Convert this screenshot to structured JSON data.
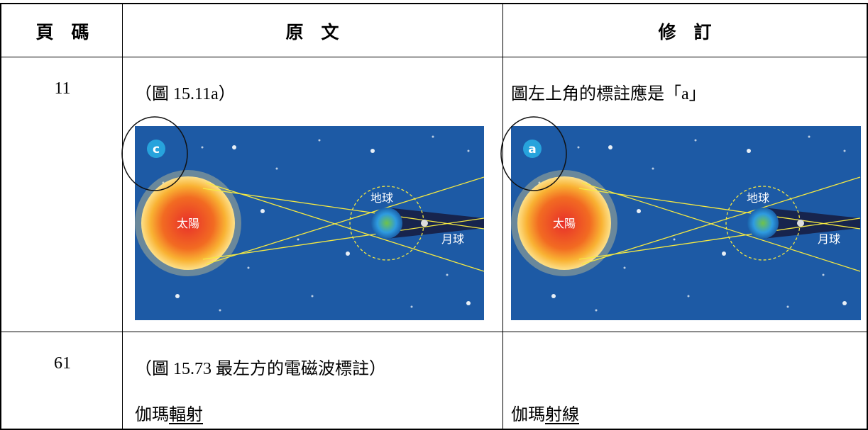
{
  "table": {
    "header": [
      "頁　碼",
      "原　文",
      "修　訂"
    ],
    "rows": [
      {
        "page": "11",
        "original": {
          "text": "（圖 15.11a）",
          "figure": {
            "badge": "c",
            "sun": "太陽",
            "earth": "地球",
            "moon": "月球"
          }
        },
        "revision": {
          "text": "圖左上角的標註應是「a」",
          "figure": {
            "badge": "a",
            "sun": "太陽",
            "earth": "地球",
            "moon": "月球"
          }
        }
      },
      {
        "page": "61",
        "original": {
          "text": "（圖 15.73 最左方的電磁波標註）",
          "plain": "伽瑪",
          "underlined": "輻射"
        },
        "revision": {
          "plain": "伽瑪",
          "underlined": "射線"
        }
      }
    ]
  }
}
